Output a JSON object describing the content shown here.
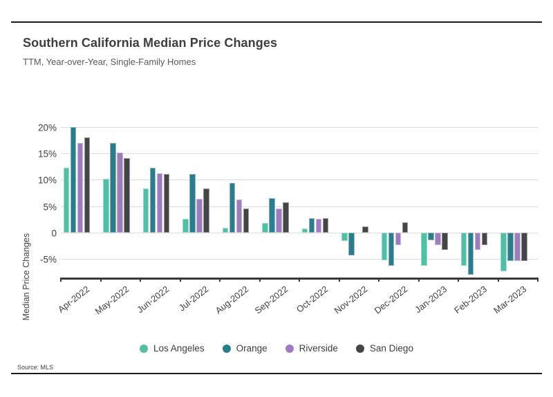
{
  "header": {
    "title": "Southern California Median Price Changes",
    "subtitle": "TTM, Year-over-Year, Single-Family Homes"
  },
  "footer": {
    "source": "Source: MLS"
  },
  "colors": {
    "los_angeles": "#4fc0a6",
    "orange": "#2a7d8d",
    "riverside": "#9f7cbf",
    "san_diego": "#454547",
    "gridline": "#dcdcdc",
    "axis": "#383838"
  },
  "chart_data": {
    "type": "bar",
    "title": "Southern California Median Price Changes",
    "subtitle": "TTM, Year-over-Year, Single-Family Homes",
    "xlabel": "",
    "ylabel": "Median Price Changes",
    "ylim": [
      -8.5,
      22.4
    ],
    "grid": true,
    "legend_position": "bottom",
    "y_ticks": [
      {
        "label": "20%",
        "value": 20
      },
      {
        "label": "15%",
        "value": 15
      },
      {
        "label": "10%",
        "value": 10
      },
      {
        "label": "5%",
        "value": 5
      },
      {
        "label": "0",
        "value": 0
      },
      {
        "label": "-5%",
        "value": -5
      }
    ],
    "categories": [
      "Apr-2022",
      "May-2022",
      "Jun-2022",
      "Jul-2022",
      "Aug-2022",
      "Sep-2022",
      "Oct-2022",
      "Nov-2022",
      "Dec-2022",
      "Jan-2023",
      "Feb-2023",
      "Mar-2023"
    ],
    "series": [
      {
        "name": "Los Angeles",
        "color": "#4fc0a6",
        "values": [
          12.2,
          10.2,
          8.3,
          2.6,
          0.9,
          1.8,
          0.8,
          -1.5,
          -5.2,
          -6.2,
          -6.3,
          -7.3
        ]
      },
      {
        "name": "Orange",
        "color": "#2a7d8d",
        "values": [
          19.9,
          17.0,
          12.2,
          11.1,
          9.4,
          6.5,
          2.7,
          -4.3,
          -6.3,
          -1.4,
          -8.0,
          -5.4
        ]
      },
      {
        "name": "Riverside",
        "color": "#9f7cbf",
        "values": [
          17.0,
          15.1,
          11.2,
          6.4,
          6.3,
          4.6,
          2.6,
          0.0,
          -2.3,
          -2.4,
          -3.3,
          -5.3
        ]
      },
      {
        "name": "San Diego",
        "color": "#454547",
        "values": [
          18.0,
          14.1,
          11.1,
          8.3,
          4.6,
          5.7,
          2.7,
          1.2,
          2.0,
          -3.3,
          -2.4,
          -5.4
        ]
      }
    ]
  }
}
